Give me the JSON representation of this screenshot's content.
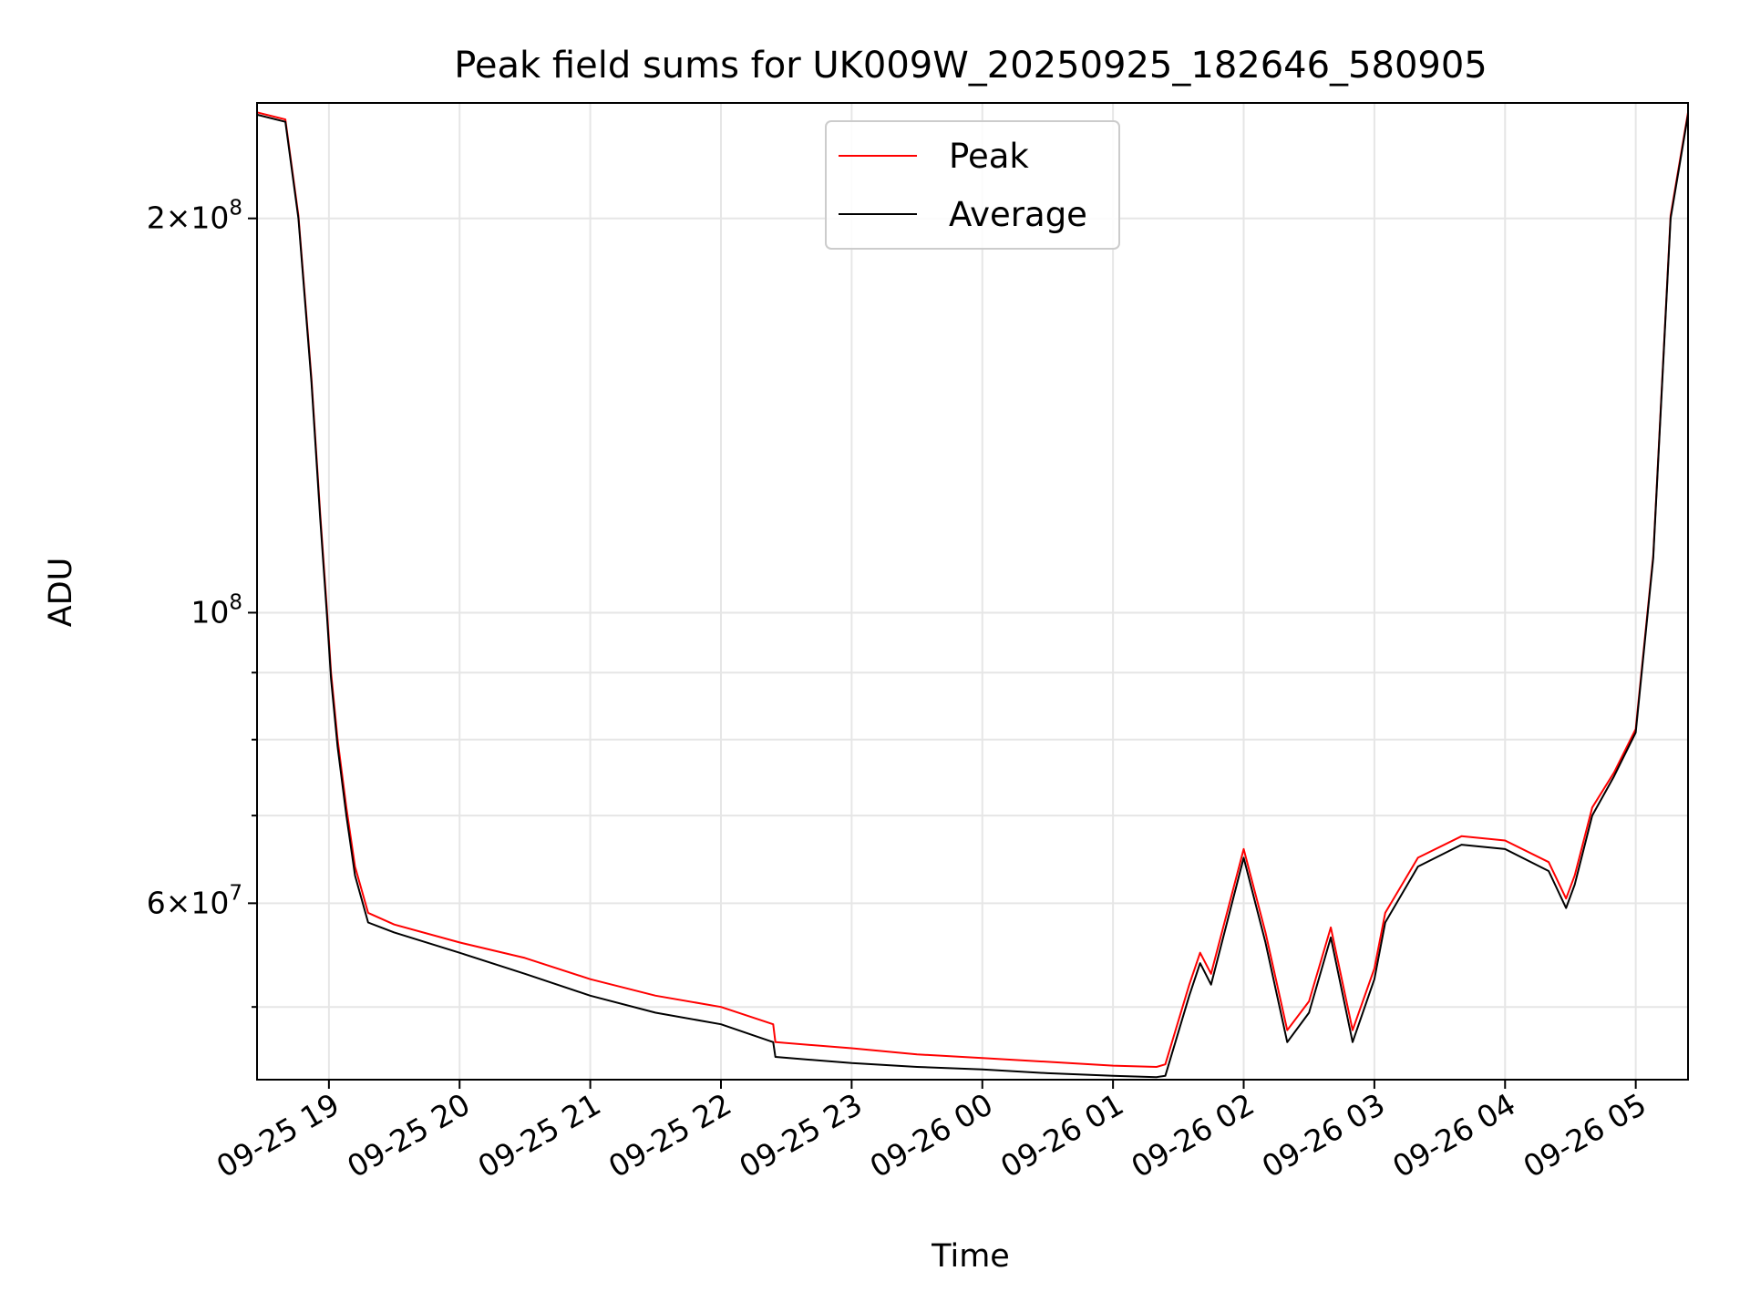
{
  "chart_data": {
    "type": "line",
    "title": "Peak field sums for UK009W_20250925_182646_580905",
    "xlabel": "Time",
    "ylabel": "ADU",
    "y_scale": "log",
    "grid": true,
    "legend_position": "top-center",
    "x_range": [
      "2025-09-25 18:27",
      "2025-09-26 05:24"
    ],
    "y_range": [
      44000000,
      245000000
    ],
    "x_ticks": [
      {
        "at": "2025-09-25 19:00",
        "label": "09-25 19"
      },
      {
        "at": "2025-09-25 20:00",
        "label": "09-25 20"
      },
      {
        "at": "2025-09-25 21:00",
        "label": "09-25 21"
      },
      {
        "at": "2025-09-25 22:00",
        "label": "09-25 22"
      },
      {
        "at": "2025-09-25 23:00",
        "label": "09-25 23"
      },
      {
        "at": "2025-09-26 00:00",
        "label": "09-26 00"
      },
      {
        "at": "2025-09-26 01:00",
        "label": "09-26 01"
      },
      {
        "at": "2025-09-26 02:00",
        "label": "09-26 02"
      },
      {
        "at": "2025-09-26 03:00",
        "label": "09-26 03"
      },
      {
        "at": "2025-09-26 04:00",
        "label": "09-26 04"
      },
      {
        "at": "2025-09-26 05:00",
        "label": "09-26 05"
      }
    ],
    "y_ticks_major": [
      {
        "value": 60000000,
        "base": "6",
        "mult": "×",
        "ten": "10",
        "exp": "7"
      },
      {
        "value": 100000000,
        "base": "",
        "mult": "",
        "ten": "10",
        "exp": "8"
      },
      {
        "value": 200000000,
        "base": "2",
        "mult": "×",
        "ten": "10",
        "exp": "8"
      }
    ],
    "y_ticks_minor": [
      50000000,
      70000000,
      80000000,
      90000000
    ],
    "series": [
      {
        "name": "Peak",
        "color": "#ff0000"
      },
      {
        "name": "Average",
        "color": "#000000"
      }
    ],
    "x": [
      "2025-09-25 18:27",
      "2025-09-25 18:40",
      "2025-09-25 18:46",
      "2025-09-25 18:52",
      "2025-09-25 18:56",
      "2025-09-25 18:59",
      "2025-09-25 19:01",
      "2025-09-25 19:04",
      "2025-09-25 19:08",
      "2025-09-25 19:12",
      "2025-09-25 19:18",
      "2025-09-25 19:30",
      "2025-09-25 20:00",
      "2025-09-25 20:30",
      "2025-09-25 21:00",
      "2025-09-25 21:30",
      "2025-09-25 22:00",
      "2025-09-25 22:24",
      "2025-09-25 22:25",
      "2025-09-25 23:00",
      "2025-09-25 23:30",
      "2025-09-26 00:00",
      "2025-09-26 00:30",
      "2025-09-26 01:00",
      "2025-09-26 01:20",
      "2025-09-26 01:24",
      "2025-09-26 01:35",
      "2025-09-26 01:40",
      "2025-09-26 01:45",
      "2025-09-26 02:00",
      "2025-09-26 02:10",
      "2025-09-26 02:20",
      "2025-09-26 02:30",
      "2025-09-26 02:40",
      "2025-09-26 02:50",
      "2025-09-26 03:00",
      "2025-09-26 03:05",
      "2025-09-26 03:20",
      "2025-09-26 03:40",
      "2025-09-26 04:00",
      "2025-09-26 04:20",
      "2025-09-26 04:28",
      "2025-09-26 04:32",
      "2025-09-26 04:40",
      "2025-09-26 04:50",
      "2025-09-26 05:00",
      "2025-09-26 05:08",
      "2025-09-26 05:16",
      "2025-09-26 05:24"
    ],
    "average_values": [
      240000000,
      237000000,
      200000000,
      150000000,
      118000000,
      100000000,
      89000000,
      79000000,
      70000000,
      63000000,
      58000000,
      57000000,
      55000000,
      53000000,
      51000000,
      49500000,
      48500000,
      47000000,
      45800000,
      45300000,
      45000000,
      44800000,
      44500000,
      44300000,
      44200000,
      44300000,
      51000000,
      54000000,
      52000000,
      65000000,
      56000000,
      47000000,
      49500000,
      56500000,
      47000000,
      52500000,
      58000000,
      64000000,
      66500000,
      66000000,
      63500000,
      59500000,
      62000000,
      70000000,
      75000000,
      81000000,
      110000000,
      200000000,
      240000000
    ],
    "peak_values": [
      241000000,
      238000000,
      201000000,
      151000000,
      119000000,
      101000000,
      90000000,
      80000000,
      71000000,
      64000000,
      59000000,
      57800000,
      56000000,
      54500000,
      52500000,
      51000000,
      50000000,
      48500000,
      47000000,
      46500000,
      46000000,
      45700000,
      45400000,
      45100000,
      45000000,
      45200000,
      52000000,
      55000000,
      53000000,
      66000000,
      57000000,
      48000000,
      50500000,
      57500000,
      48000000,
      53500000,
      59000000,
      65000000,
      67500000,
      67000000,
      64500000,
      60500000,
      63000000,
      71000000,
      75500000,
      81500000,
      110500000,
      201000000,
      241000000
    ]
  }
}
